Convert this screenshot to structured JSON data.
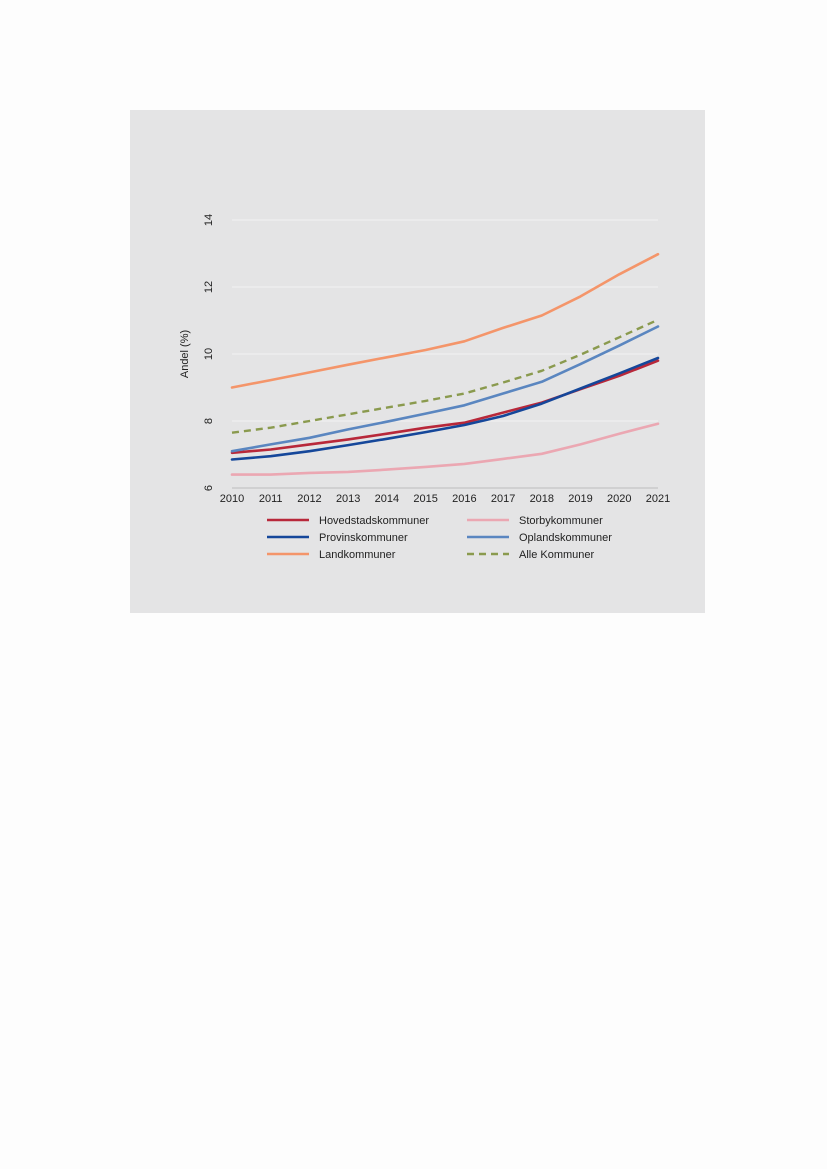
{
  "chart_data": {
    "type": "line",
    "title": "",
    "xlabel": "",
    "ylabel": "Andel (%)",
    "x": [
      "2010",
      "2011",
      "2012",
      "2013",
      "2014",
      "2015",
      "2016",
      "2017",
      "2018",
      "2019",
      "2020",
      "2021"
    ],
    "ylim": [
      6,
      14
    ],
    "yticks": [
      6,
      8,
      10,
      12,
      14
    ],
    "grid": "horizontal",
    "legend_position": "bottom",
    "series": [
      {
        "name": "Hovedstadskommuner",
        "color": "#b8283a",
        "dash": false,
        "values": [
          7.05,
          7.15,
          7.3,
          7.45,
          7.62,
          7.8,
          7.95,
          8.25,
          8.55,
          8.95,
          9.35,
          9.8
        ]
      },
      {
        "name": "Storbykommuner",
        "color": "#eba7b2",
        "dash": false,
        "values": [
          6.4,
          6.4,
          6.45,
          6.48,
          6.55,
          6.63,
          6.72,
          6.87,
          7.02,
          7.3,
          7.62,
          7.92
        ]
      },
      {
        "name": "Provinskommuner",
        "color": "#15479a",
        "dash": false,
        "values": [
          6.85,
          6.95,
          7.1,
          7.28,
          7.47,
          7.67,
          7.88,
          8.15,
          8.52,
          8.97,
          9.42,
          9.88
        ]
      },
      {
        "name": "Oplandskommuner",
        "color": "#5a86c0",
        "dash": false,
        "values": [
          7.1,
          7.3,
          7.5,
          7.75,
          7.98,
          8.22,
          8.47,
          8.82,
          9.17,
          9.7,
          10.25,
          10.82
        ]
      },
      {
        "name": "Landkommuner",
        "color": "#f4956a",
        "dash": false,
        "values": [
          9.0,
          9.22,
          9.45,
          9.68,
          9.9,
          10.12,
          10.38,
          10.78,
          11.15,
          11.72,
          12.38,
          12.98
        ]
      },
      {
        "name": "Alle Kommuner",
        "color": "#8a9a4e",
        "dash": true,
        "values": [
          7.65,
          7.8,
          8.0,
          8.2,
          8.4,
          8.6,
          8.82,
          9.15,
          9.5,
          9.98,
          10.5,
          11.02
        ]
      }
    ]
  }
}
